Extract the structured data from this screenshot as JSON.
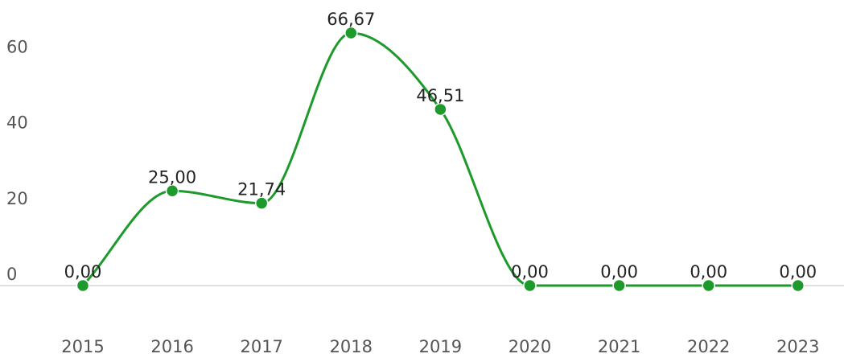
{
  "chart_data": {
    "type": "line",
    "title": "",
    "xlabel": "",
    "ylabel": "",
    "categories": [
      "2015",
      "2016",
      "2017",
      "2018",
      "2019",
      "2020",
      "2021",
      "2022",
      "2023"
    ],
    "values": [
      0.0,
      25.0,
      21.74,
      66.67,
      46.51,
      0.0,
      0.0,
      0.0,
      0.0
    ],
    "data_labels": [
      "0,00",
      "25,00",
      "21,74",
      "66,67",
      "46,51",
      "0,00",
      "0,00",
      "0,00",
      "0,00"
    ],
    "yticks": [
      0,
      20,
      40,
      60
    ],
    "ylim": [
      0,
      66.67
    ],
    "grid": false,
    "baseline": true,
    "legend": "none",
    "line_color": "#1e9a2c",
    "baseline_color": "#d6d6d6"
  }
}
